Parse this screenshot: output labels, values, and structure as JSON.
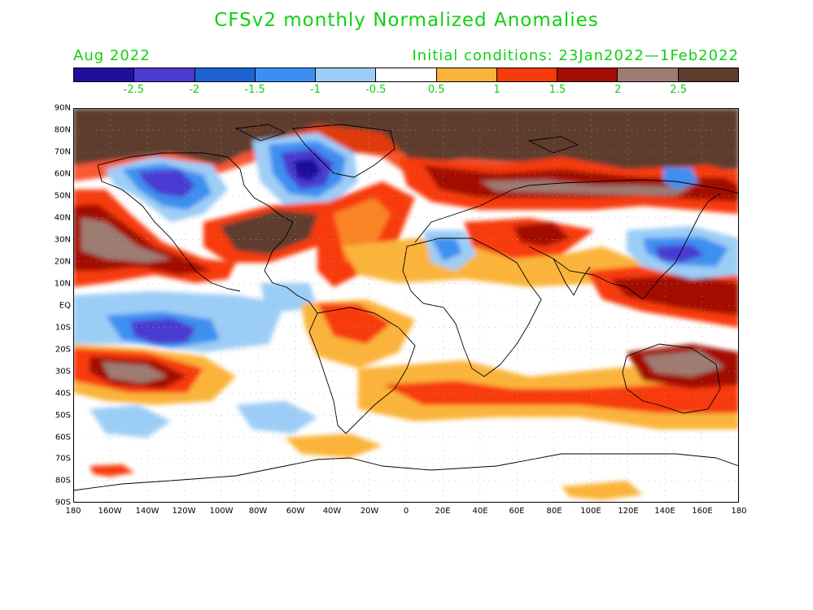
{
  "header": {
    "title": "CFSv2 monthly Normalized Anomalies",
    "valid_month": "Aug 2022",
    "initial_conditions": "Initial conditions: 23Jan2022—1Feb2022"
  },
  "legend": {
    "colors": [
      "#1f0f9e",
      "#4a3bd1",
      "#1e63d6",
      "#3c8ff0",
      "#9ccdf6",
      "#ffffff",
      "#fbb43a",
      "#f73a0a",
      "#a30d05",
      "#9e7b72",
      "#5e3c2e"
    ],
    "labels": [
      "-2.5",
      "-2",
      "-1.5",
      "-1",
      "-0.5",
      "0.5",
      "1",
      "1.5",
      "2",
      "2.5"
    ]
  },
  "map": {
    "lat_labels": [
      "90N",
      "80N",
      "70N",
      "60N",
      "50N",
      "40N",
      "30N",
      "20N",
      "10N",
      "EQ",
      "10S",
      "20S",
      "30S",
      "40S",
      "50S",
      "60S",
      "70S",
      "80S",
      "90S"
    ],
    "lon_labels": [
      "180",
      "160W",
      "140W",
      "120W",
      "100W",
      "80W",
      "60W",
      "40W",
      "20W",
      "0",
      "20E",
      "40E",
      "60E",
      "80E",
      "100E",
      "120E",
      "140E",
      "160E",
      "180"
    ]
  }
}
